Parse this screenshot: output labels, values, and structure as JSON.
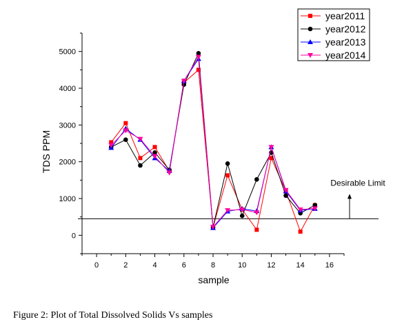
{
  "chart_data": {
    "type": "line",
    "xlabel": "sample",
    "ylabel": "TDS PPM",
    "xlim": [
      -1,
      17
    ],
    "ylim": [
      -500,
      5500
    ],
    "x_ticks": [
      0,
      2,
      4,
      6,
      8,
      10,
      12,
      14,
      16
    ],
    "y_ticks": [
      0,
      1000,
      2000,
      3000,
      4000,
      5000
    ],
    "x": [
      1,
      2,
      3,
      4,
      5,
      6,
      7,
      8,
      9,
      10,
      11,
      12,
      13,
      14,
      15
    ],
    "series": [
      {
        "name": "year2011",
        "color": "#ff0000",
        "marker": "square",
        "values": [
          2530,
          3050,
          2100,
          2400,
          1750,
          4150,
          4500,
          220,
          1630,
          700,
          150,
          2100,
          1200,
          100,
          820
        ]
      },
      {
        "name": "year2012",
        "color": "#000000",
        "marker": "circle",
        "values": [
          2400,
          2600,
          1900,
          2250,
          1780,
          4100,
          4950,
          220,
          1950,
          530,
          1520,
          2250,
          1080,
          600,
          820
        ]
      },
      {
        "name": "year2013",
        "color": "#0000ff",
        "marker": "triangle-up",
        "values": [
          2380,
          2900,
          2600,
          2100,
          1750,
          4200,
          4800,
          200,
          650,
          720,
          660,
          2400,
          1200,
          680,
          720
        ]
      },
      {
        "name": "year2014",
        "color": "#ff00a0",
        "marker": "triangle-down",
        "values": [
          2450,
          2850,
          2620,
          2150,
          1700,
          4200,
          4850,
          230,
          680,
          700,
          620,
          2400,
          1230,
          700,
          730
        ]
      }
    ],
    "limit_line": {
      "value": 450,
      "label": "Desirable Limit"
    },
    "legend_position": "top-right",
    "grid": false
  },
  "caption": "Figure 2: Plot of Total Dissolved Solids Vs samples"
}
